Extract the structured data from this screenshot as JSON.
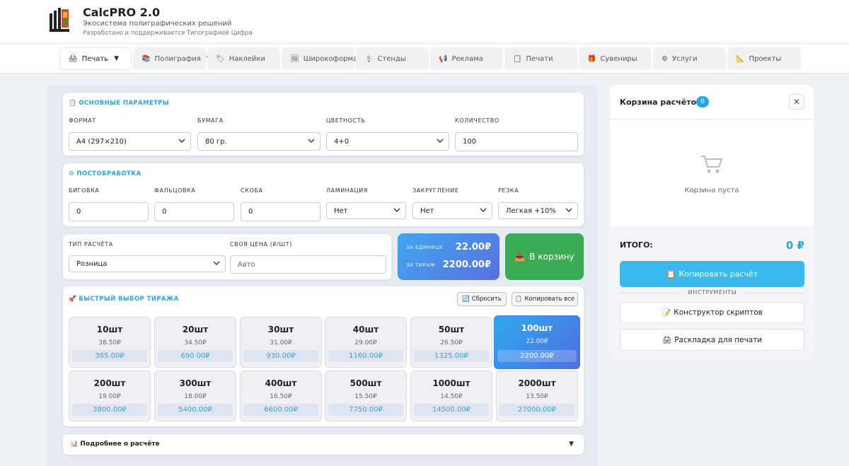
{
  "header": {
    "title": "CalcPRO 2.0",
    "subtitle": "Экосистема полиграфических решений",
    "credit": "Разработано и поддерживается Типографией Цифра"
  },
  "nav": [
    {
      "label": "Печать",
      "icon": "printer-icon",
      "glyph": "🖨",
      "dropdown": true,
      "active": true
    },
    {
      "label": "Полиграфия",
      "icon": "books-icon",
      "glyph": "📚",
      "dropdown": true
    },
    {
      "label": "Наклейки",
      "icon": "sticker-icon",
      "glyph": "🏷"
    },
    {
      "label": "Широкоформат",
      "icon": "picture-icon",
      "glyph": "🖼"
    },
    {
      "label": "Стенды",
      "icon": "stand-icon",
      "glyph": "🪧"
    },
    {
      "label": "Реклама",
      "icon": "megaphone-icon",
      "glyph": "📢"
    },
    {
      "label": "Печати",
      "icon": "stamp-icon",
      "glyph": "📋"
    },
    {
      "label": "Сувениры",
      "icon": "gift-icon",
      "glyph": "🎁"
    },
    {
      "label": "Услуги",
      "icon": "gear-icon",
      "glyph": "⚙"
    },
    {
      "label": "Проекты",
      "icon": "triangle-ruler-icon",
      "glyph": "📐"
    }
  ],
  "basic": {
    "title": "ОСНОВНЫЕ ПАРАМЕТРЫ",
    "icon_glyph": "📋",
    "format_label": "ФОРМАТ",
    "format_value": "А4 (297×210)",
    "paper_label": "БУМАГА",
    "paper_value": "80 гр.",
    "color_label": "ЦВЕТНОСТЬ",
    "color_value": "4+0",
    "qty_label": "КОЛИЧЕСТВО",
    "qty_value": "100"
  },
  "post": {
    "title": "ПОСТОБРАБОТКА",
    "icon_glyph": "⚙",
    "fields": [
      {
        "label": "БИГОВКА",
        "value": "0",
        "type": "input"
      },
      {
        "label": "ФАЛЬЦОВКА",
        "value": "0",
        "type": "input"
      },
      {
        "label": "СКОБА",
        "value": "0",
        "type": "input"
      },
      {
        "label": "ЛАМИНАЦИЯ",
        "value": "Нет",
        "type": "select"
      },
      {
        "label": "ЗАКРУГЛЕНИЕ",
        "value": "Нет",
        "type": "select"
      },
      {
        "label": "РЕЗКА",
        "value": "Легкая +10%",
        "type": "select"
      }
    ]
  },
  "calc": {
    "type_label": "ТИП РАСЧЁТА",
    "type_value": "Розница",
    "own_price_label": "СВОЯ ЦЕНА (₽/ШТ)",
    "own_price_placeholder": "Авто"
  },
  "price": {
    "unit_label": "ЗА ЕДИНИЦУ",
    "unit_value": "22.00₽",
    "run_label": "ЗА ТИРАЖ",
    "run_value": "2200.00₽"
  },
  "cart_button": {
    "label": "В корзину",
    "glyph": "📥"
  },
  "quick": {
    "title": "БЫСТРЫЙ ВЫБОР ТИРАЖА",
    "icon_glyph": "🚀",
    "reset_label": "Сбросить",
    "reset_glyph": "🔄",
    "copy_all_label": "Копировать все",
    "copy_glyph": "📋",
    "items": [
      {
        "qty": "10шт",
        "unit": "38.50₽",
        "total": "385.00₽"
      },
      {
        "qty": "20шт",
        "unit": "34.50₽",
        "total": "690.00₽"
      },
      {
        "qty": "30шт",
        "unit": "31.00₽",
        "total": "930.00₽"
      },
      {
        "qty": "40шт",
        "unit": "29.00₽",
        "total": "1160.00₽"
      },
      {
        "qty": "50шт",
        "unit": "26.50₽",
        "total": "1325.00₽"
      },
      {
        "qty": "100шт",
        "unit": "22.00₽",
        "total": "2200.00₽",
        "active": true
      },
      {
        "qty": "200шт",
        "unit": "19.00₽",
        "total": "3800.00₽"
      },
      {
        "qty": "300шт",
        "unit": "18.00₽",
        "total": "5400.00₽"
      },
      {
        "qty": "400шт",
        "unit": "16.50₽",
        "total": "6600.00₽"
      },
      {
        "qty": "500шт",
        "unit": "15.50₽",
        "total": "7750.00₽"
      },
      {
        "qty": "1000шт",
        "unit": "14.50₽",
        "total": "14500.00₽"
      },
      {
        "qty": "2000шт",
        "unit": "13.50₽",
        "total": "27000.00₽"
      }
    ]
  },
  "details": {
    "label": "Подробнее о расчёте",
    "glyph": "📊"
  },
  "cart": {
    "title": "Корзина расчётов",
    "count": "0",
    "empty": "Корзина пуста",
    "total_label": "ИТОГО:",
    "total_value": "0 ₽",
    "copy_label": "Копировать расчёт",
    "copy_glyph": "📋",
    "tools_label": "ИНСТРУМЕНТЫ",
    "tool1": "Конструктор скриптов",
    "tool1_glyph": "📝",
    "tool2": "Раскладка для печати",
    "tool2_glyph": "🖨"
  },
  "colors": {
    "accent": "#27a7de",
    "green": "#3bab56",
    "blue_grad_start": "#3fa8f0",
    "blue_grad_end": "#5a6fe0"
  }
}
